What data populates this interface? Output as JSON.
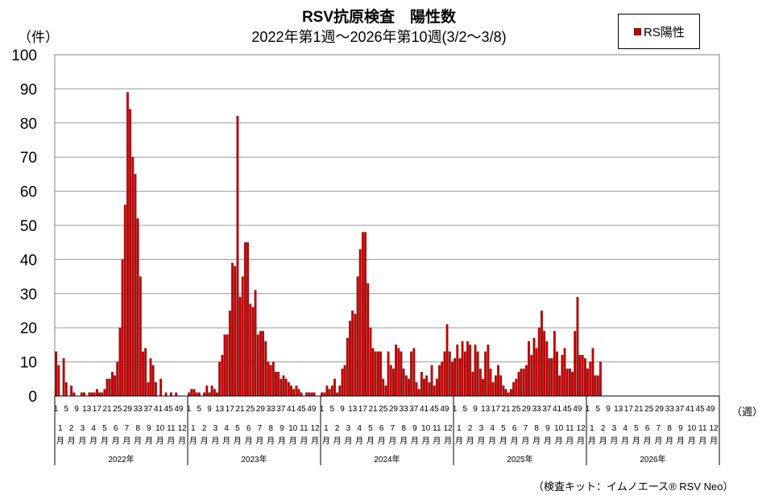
{
  "chart_data": {
    "type": "bar",
    "title": "RSV抗原検査　陽性数",
    "subtitle": "2022年第1週～2026年第10週(3/2～3/8)",
    "ylabel": "（件）",
    "xlabel": "（週）",
    "ylim": [
      0,
      100
    ],
    "yticks": [
      0,
      10,
      20,
      30,
      40,
      50,
      60,
      70,
      80,
      90,
      100
    ],
    "grid": true,
    "legend_position": "top-right",
    "bar_color": "#c00000",
    "series": [
      {
        "name": "RS陽性",
        "values": [
          13,
          9,
          0,
          11,
          4,
          0,
          3,
          1,
          0,
          0,
          1,
          1,
          0,
          1,
          1,
          1,
          2,
          1,
          1,
          2,
          5,
          5,
          7,
          6,
          10,
          20,
          40,
          56,
          89,
          84,
          70,
          65,
          52,
          35,
          13,
          14,
          4,
          11,
          9,
          4,
          0,
          5,
          0,
          1,
          0,
          1,
          0,
          1,
          0,
          0,
          0,
          0,
          1,
          2,
          2,
          1,
          1,
          0,
          1,
          3,
          1,
          3,
          2,
          1,
          10,
          12,
          18,
          18,
          25,
          39,
          38,
          82,
          29,
          35,
          45,
          45,
          27,
          26,
          31,
          18,
          19,
          19,
          16,
          10,
          9,
          10,
          7,
          7,
          5,
          6,
          5,
          4,
          3,
          2,
          3,
          2,
          1,
          0,
          1,
          1,
          1,
          1,
          0,
          0,
          1,
          1,
          3,
          2,
          3,
          5,
          1,
          3,
          8,
          9,
          17,
          22,
          25,
          24,
          35,
          43,
          48,
          48,
          33,
          20,
          14,
          13,
          13,
          13,
          5,
          3,
          13,
          9,
          8,
          15,
          14,
          13,
          8,
          6,
          5,
          13,
          14,
          4,
          2,
          7,
          5,
          6,
          4,
          9,
          3,
          5,
          9,
          10,
          13,
          21,
          13,
          10,
          11,
          15,
          11,
          16,
          13,
          16,
          15,
          7,
          15,
          13,
          8,
          5,
          13,
          15,
          8,
          4,
          6,
          9,
          6,
          3,
          2,
          1,
          2,
          4,
          5,
          7,
          8,
          8,
          9,
          16,
          12,
          17,
          14,
          20,
          25,
          19,
          16,
          11,
          11,
          19,
          13,
          6,
          12,
          14,
          8,
          8,
          7,
          19,
          29,
          12,
          12,
          11,
          8,
          10,
          14,
          6,
          6,
          10,
          0,
          0,
          0,
          0,
          0,
          0,
          0,
          0,
          0,
          0,
          0,
          0,
          0,
          0,
          0,
          0,
          0,
          0,
          0,
          0,
          0,
          0,
          0,
          0,
          0,
          0,
          0,
          0,
          0,
          0,
          0,
          0,
          0,
          0,
          0,
          0,
          0,
          0,
          0,
          0,
          0,
          0,
          0,
          0,
          0,
          0,
          0,
          0
        ]
      }
    ],
    "week_tick_labels": [
      "1",
      "5",
      "9",
      "13",
      "17",
      "21",
      "25",
      "29",
      "33",
      "37",
      "41",
      "45",
      "49"
    ],
    "month_labels": [
      "1",
      "2",
      "3",
      "4",
      "5",
      "6",
      "7",
      "8",
      "9",
      "10",
      "11",
      "12"
    ],
    "month_suffix": "月",
    "years": [
      "2022年",
      "2023年",
      "2024年",
      "2025年",
      "2026年"
    ]
  },
  "legend_label": "RS陽性",
  "footnote": "（検査キット：イムノエース® RSV Neo）"
}
